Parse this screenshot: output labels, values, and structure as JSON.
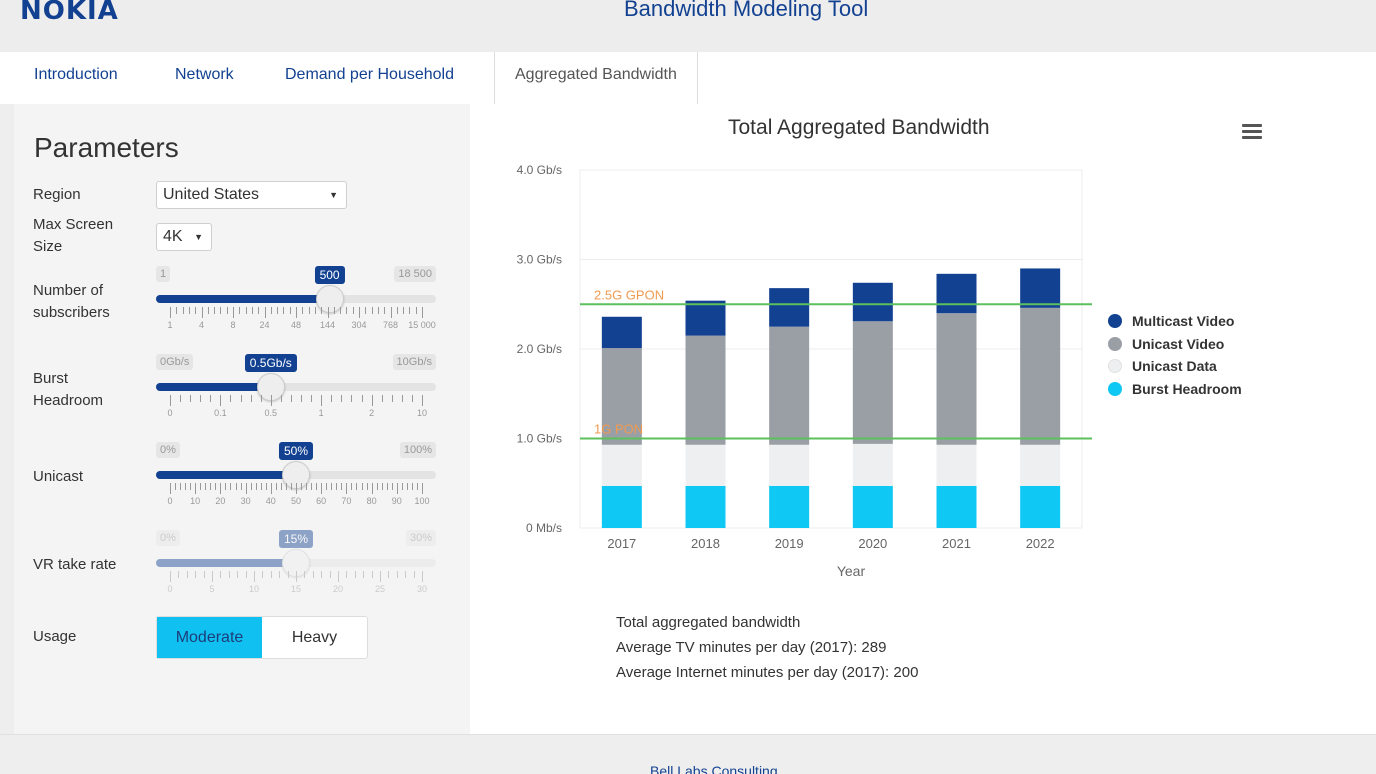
{
  "header": {
    "logo": "NOKIA",
    "title": "Bandwidth Modeling Tool"
  },
  "tabs": [
    {
      "label": "Introduction"
    },
    {
      "label": "Network"
    },
    {
      "label": "Demand per Household"
    },
    {
      "label": "Aggregated Bandwidth",
      "active": true
    }
  ],
  "params": {
    "title": "Parameters",
    "region": {
      "label": "Region",
      "value": "United States"
    },
    "screen": {
      "label_line1": "Max Screen",
      "label_line2": "Size",
      "value": "4K"
    },
    "subscribers": {
      "label_line1": "Number of",
      "label_line2": "subscribers",
      "min": "1",
      "max": "18 500",
      "value": "500",
      "position_fraction": 0.62,
      "grid": [
        "1",
        "4",
        "8",
        "24",
        "48",
        "144",
        "304",
        "768",
        "15 000"
      ]
    },
    "burst": {
      "label_line1": "Burst",
      "label_line2": "Headroom",
      "min": "0Gb/s",
      "max": "10Gb/s",
      "value": "0.5Gb/s",
      "position_fraction": 0.41,
      "grid": [
        "0",
        "0.1",
        "0.5",
        "1",
        "2",
        "10"
      ]
    },
    "unicast": {
      "label": "Unicast",
      "min": "0%",
      "max": "100%",
      "value": "50%",
      "position_fraction": 0.5,
      "grid": [
        "0",
        "10",
        "20",
        "30",
        "40",
        "50",
        "60",
        "70",
        "80",
        "90",
        "100"
      ]
    },
    "vr": {
      "label": "VR take rate",
      "min": "0%",
      "max": "30%",
      "value": "15%",
      "position_fraction": 0.5,
      "grid": [
        "0",
        "5",
        "10",
        "15",
        "20",
        "25",
        "30"
      ]
    },
    "usage": {
      "label": "Usage",
      "options": [
        "Moderate",
        "Heavy"
      ],
      "selected": "Moderate"
    }
  },
  "chart_data": {
    "type": "bar",
    "stacked": true,
    "title": "Total Aggregated Bandwidth",
    "xlabel": "Year",
    "ylabel": "",
    "categories": [
      "2017",
      "2018",
      "2019",
      "2020",
      "2021",
      "2022"
    ],
    "ylim": [
      0,
      4.0
    ],
    "yticks": [
      0,
      1.0,
      2.0,
      3.0,
      4.0
    ],
    "ytick_labels": [
      "0 Mb/s",
      "1.0 Gb/s",
      "2.0 Gb/s",
      "3.0 Gb/s",
      "4.0 Gb/s"
    ],
    "series": [
      {
        "name": "Burst Headroom",
        "color": "#10c8f4",
        "values": [
          0.47,
          0.47,
          0.47,
          0.47,
          0.47,
          0.47
        ]
      },
      {
        "name": "Unicast Data",
        "color": "#eeeff0",
        "values": [
          0.46,
          0.46,
          0.46,
          0.47,
          0.46,
          0.46
        ]
      },
      {
        "name": "Unicast Video",
        "color": "#9a9fa6",
        "values": [
          1.08,
          1.22,
          1.32,
          1.37,
          1.47,
          1.53
        ]
      },
      {
        "name": "Multicast Video",
        "color": "#124191",
        "values": [
          0.35,
          0.39,
          0.43,
          0.43,
          0.44,
          0.44
        ]
      }
    ],
    "reference_lines": [
      {
        "label": "2.5G GPON",
        "value": 2.5,
        "color": "#5cc05c",
        "label_color": "#f09a50"
      },
      {
        "label": "1G PON",
        "value": 1.0,
        "color": "#5cc05c",
        "label_color": "#f09a50"
      }
    ],
    "legend_position": "right"
  },
  "legend": [
    {
      "name": "Multicast Video",
      "color": "#124191"
    },
    {
      "name": "Unicast Video",
      "color": "#9a9fa6"
    },
    {
      "name": "Unicast Data",
      "color": "#eeeff0"
    },
    {
      "name": "Burst Headroom",
      "color": "#10c8f4"
    }
  ],
  "stats": {
    "line1": "Total aggregated bandwidth",
    "line2": "Average TV minutes per day (2017): 289",
    "line3": "Average Internet minutes per day (2017): 200"
  },
  "footer": {
    "text": "Bell Labs Consulting"
  }
}
